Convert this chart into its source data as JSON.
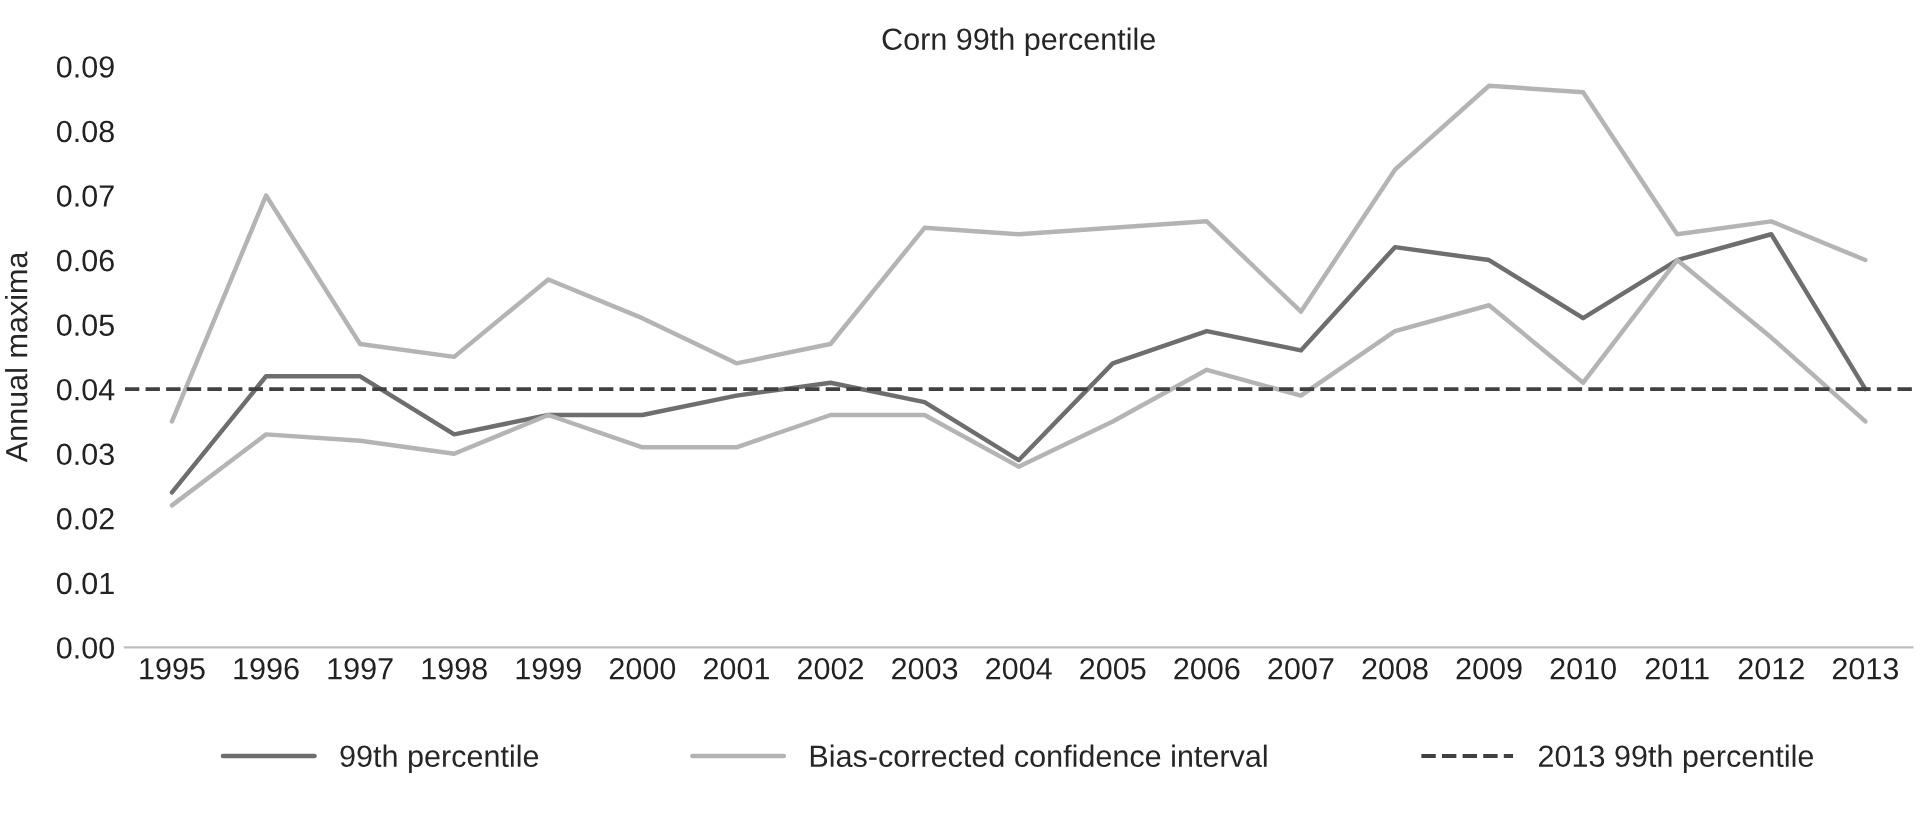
{
  "chart_data": {
    "type": "line",
    "title": "Corn 99th percentile",
    "ylabel": "Annual maxima",
    "categories": [
      "1995",
      "1996",
      "1997",
      "1998",
      "1999",
      "2000",
      "2001",
      "2002",
      "2003",
      "2004",
      "2005",
      "2006",
      "2007",
      "2008",
      "2009",
      "2010",
      "2011",
      "2012",
      "2013"
    ],
    "series": [
      {
        "name": "99th percentile",
        "color": "#6e6e6e",
        "values": [
          0.024,
          0.042,
          0.042,
          0.033,
          0.036,
          0.036,
          0.039,
          0.041,
          0.038,
          0.029,
          0.044,
          0.049,
          0.046,
          0.062,
          0.06,
          0.051,
          0.06,
          0.064,
          0.04
        ]
      },
      {
        "name": "Bias-corrected confidence interval",
        "color": "#b4b4b4",
        "values": [
          0.035,
          0.07,
          0.047,
          0.045,
          0.057,
          0.051,
          0.044,
          0.047,
          0.065,
          0.064,
          0.065,
          0.066,
          0.052,
          0.074,
          0.087,
          0.086,
          0.064,
          0.066,
          0.06
        ]
      },
      {
        "color": "#b4b4b4",
        "values": [
          0.022,
          0.033,
          0.032,
          0.03,
          0.036,
          0.031,
          0.031,
          0.036,
          0.036,
          0.028,
          0.035,
          0.043,
          0.039,
          0.049,
          0.053,
          0.041,
          0.06,
          0.048,
          0.035
        ]
      }
    ],
    "ref_lines": [
      {
        "axis": "y",
        "value": 0.04,
        "label": "2013 99th percentile",
        "color": "#404040",
        "line_style": "dashed"
      }
    ],
    "ylim": [
      0,
      0.09
    ],
    "yticks": [
      {
        "value": 0,
        "label": "0.00"
      },
      {
        "value": 0.01,
        "label": "0.01"
      },
      {
        "value": 0.02,
        "label": "0.02"
      },
      {
        "value": 0.03,
        "label": "0.03"
      },
      {
        "value": 0.04,
        "label": "0.04"
      },
      {
        "value": 0.05,
        "label": "0.05"
      },
      {
        "value": 0.06,
        "label": "0.06"
      },
      {
        "value": 0.07,
        "label": "0.07"
      },
      {
        "value": 0.08,
        "label": "0.08"
      },
      {
        "value": 0.09,
        "label": "0.09"
      }
    ],
    "grid": false,
    "legend": "bottom",
    "marker": "none",
    "line_style": "solid"
  }
}
